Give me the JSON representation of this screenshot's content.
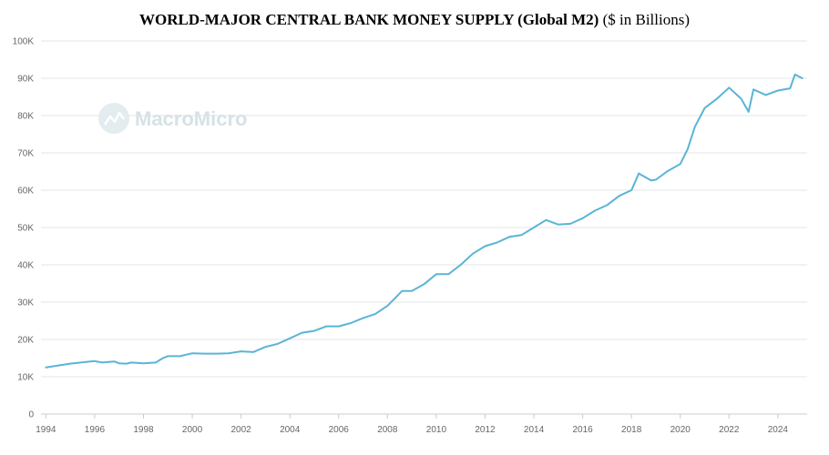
{
  "chart_data": {
    "type": "line",
    "title_bold": "WORLD-MAJOR CENTRAL BANK MONEY SUPPLY (Global M2)",
    "title_normal": "($ in Billions)",
    "watermark": "MacroMicro",
    "xlabel": "",
    "ylabel": "",
    "xlim": [
      1993.8,
      2025.2
    ],
    "ylim": [
      0,
      100000
    ],
    "x_ticks": [
      1994,
      1996,
      1998,
      2000,
      2002,
      2004,
      2006,
      2008,
      2010,
      2012,
      2014,
      2016,
      2018,
      2020,
      2022,
      2024
    ],
    "y_ticks": [
      0,
      10000,
      20000,
      30000,
      40000,
      50000,
      60000,
      70000,
      80000,
      90000,
      100000
    ],
    "y_tick_labels": [
      "0",
      "10K",
      "20K",
      "30K",
      "40K",
      "50K",
      "60K",
      "70K",
      "80K",
      "90K",
      "100K"
    ],
    "grid": true,
    "line_color": "#5ab4d6",
    "series": [
      {
        "name": "",
        "x": [
          1994.0,
          1995.0,
          1996.0,
          1996.3,
          1996.8,
          1997.0,
          1997.3,
          1997.5,
          1998.0,
          1998.5,
          1998.8,
          1999.0,
          1999.5,
          2000.0,
          2000.5,
          2001.0,
          2001.5,
          2002.0,
          2002.5,
          2003.0,
          2003.5,
          2004.0,
          2004.5,
          2005.0,
          2005.5,
          2006.0,
          2006.5,
          2007.0,
          2007.5,
          2008.0,
          2008.3,
          2008.6,
          2009.0,
          2009.5,
          2010.0,
          2010.5,
          2011.0,
          2011.5,
          2012.0,
          2012.5,
          2013.0,
          2013.5,
          2014.0,
          2014.5,
          2015.0,
          2015.5,
          2016.0,
          2016.5,
          2017.0,
          2017.5,
          2018.0,
          2018.3,
          2018.8,
          2019.0,
          2019.5,
          2020.0,
          2020.3,
          2020.6,
          2021.0,
          2021.5,
          2022.0,
          2022.5,
          2022.8,
          2023.0,
          2023.5,
          2024.0,
          2024.5,
          2024.7,
          2025.0
        ],
        "values": [
          12500,
          13500,
          14200,
          13800,
          14100,
          13600,
          13500,
          13800,
          13600,
          13800,
          15000,
          15500,
          15500,
          16300,
          16200,
          16200,
          16300,
          16800,
          16600,
          18000,
          18800,
          20300,
          21800,
          22300,
          23500,
          23500,
          24400,
          25700,
          26800,
          29000,
          31000,
          33000,
          33000,
          34800,
          37500,
          37500,
          40000,
          43000,
          45000,
          46000,
          47500,
          48000,
          50000,
          52000,
          50800,
          51000,
          52500,
          54500,
          56000,
          58500,
          60000,
          64500,
          62600,
          62800,
          65200,
          67000,
          71000,
          77000,
          82000,
          84500,
          87500,
          84500,
          81000,
          87000,
          85500,
          86700,
          87300,
          91000,
          90000
        ]
      }
    ]
  }
}
